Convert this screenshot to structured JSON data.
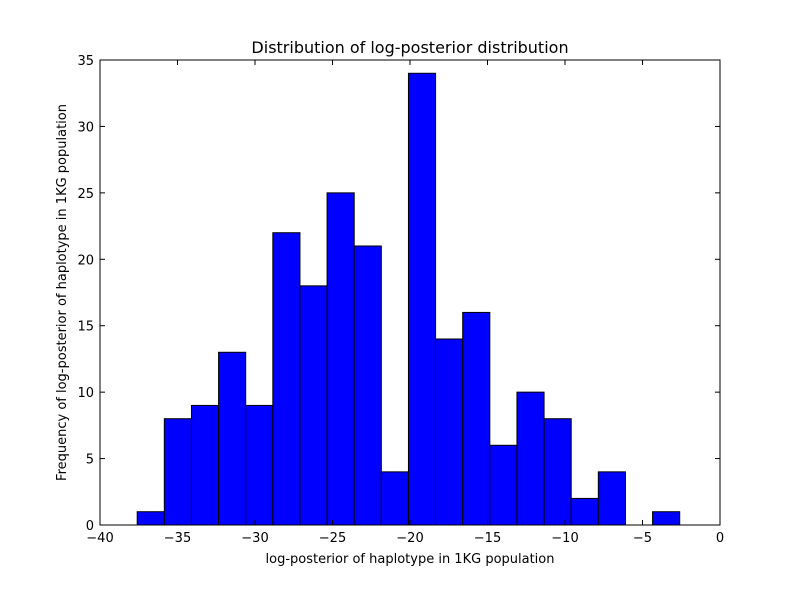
{
  "chart_data": {
    "type": "bar",
    "title": "Distribution of log-posterior distribution",
    "xlabel": "log-posterior of haplotype in 1KG population",
    "ylabel": "Frequency of log-posterior of haplotype in 1KG population",
    "xlim": [
      -40,
      0
    ],
    "ylim": [
      0,
      35
    ],
    "xticks": [
      -40,
      -35,
      -30,
      -25,
      -20,
      -15,
      -10,
      -5,
      0
    ],
    "yticks": [
      0,
      5,
      10,
      15,
      20,
      25,
      30,
      35
    ],
    "xtick_labels": [
      "−40",
      "−35",
      "−30",
      "−25",
      "−20",
      "−15",
      "−10",
      "−5",
      "0"
    ],
    "ytick_labels": [
      "0",
      "5",
      "10",
      "15",
      "20",
      "25",
      "30",
      "35"
    ],
    "grid": false,
    "legend": false,
    "bar_color": "#0000ff",
    "edge_color": "#000000",
    "bins": [
      {
        "x0": -37.6,
        "x1": -35.85,
        "count": 1
      },
      {
        "x0": -35.85,
        "x1": -34.1,
        "count": 8
      },
      {
        "x0": -34.1,
        "x1": -32.35,
        "count": 9
      },
      {
        "x0": -32.35,
        "x1": -30.6,
        "count": 13
      },
      {
        "x0": -30.6,
        "x1": -28.85,
        "count": 9
      },
      {
        "x0": -28.85,
        "x1": -27.1,
        "count": 22
      },
      {
        "x0": -27.1,
        "x1": -25.35,
        "count": 18
      },
      {
        "x0": -25.35,
        "x1": -23.6,
        "count": 25
      },
      {
        "x0": -23.6,
        "x1": -21.85,
        "count": 21
      },
      {
        "x0": -21.85,
        "x1": -20.1,
        "count": 4
      },
      {
        "x0": -20.1,
        "x1": -18.35,
        "count": 34
      },
      {
        "x0": -18.35,
        "x1": -16.6,
        "count": 14
      },
      {
        "x0": -16.6,
        "x1": -14.85,
        "count": 16
      },
      {
        "x0": -14.85,
        "x1": -13.1,
        "count": 6
      },
      {
        "x0": -13.1,
        "x1": -11.35,
        "count": 10
      },
      {
        "x0": -11.35,
        "x1": -9.6,
        "count": 8
      },
      {
        "x0": -9.6,
        "x1": -7.85,
        "count": 2
      },
      {
        "x0": -7.85,
        "x1": -6.1,
        "count": 4
      },
      {
        "x0": -6.1,
        "x1": -4.35,
        "count": 0
      },
      {
        "x0": -4.35,
        "x1": -2.6,
        "count": 1
      }
    ]
  }
}
